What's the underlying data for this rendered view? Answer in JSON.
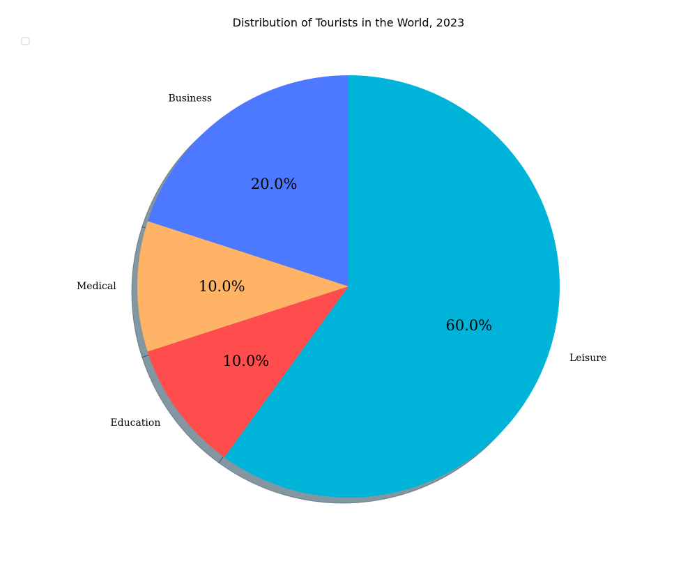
{
  "chart_data": {
    "type": "pie",
    "title": "Distribution of Tourists in the World, 2023",
    "categories": [
      "Business",
      "Medical",
      "Education",
      "Leisure"
    ],
    "values": [
      20,
      10,
      10,
      60
    ],
    "labels": [
      "20.0%",
      "10.0%",
      "10.0%",
      "60.0%"
    ],
    "colors": [
      "#4c79ff",
      "#ffb366",
      "#ff4c4c",
      "#00b3d9"
    ],
    "start_angle_deg": 90,
    "direction": "counterclockwise",
    "shadow": true,
    "legend": "top-left (empty)"
  }
}
